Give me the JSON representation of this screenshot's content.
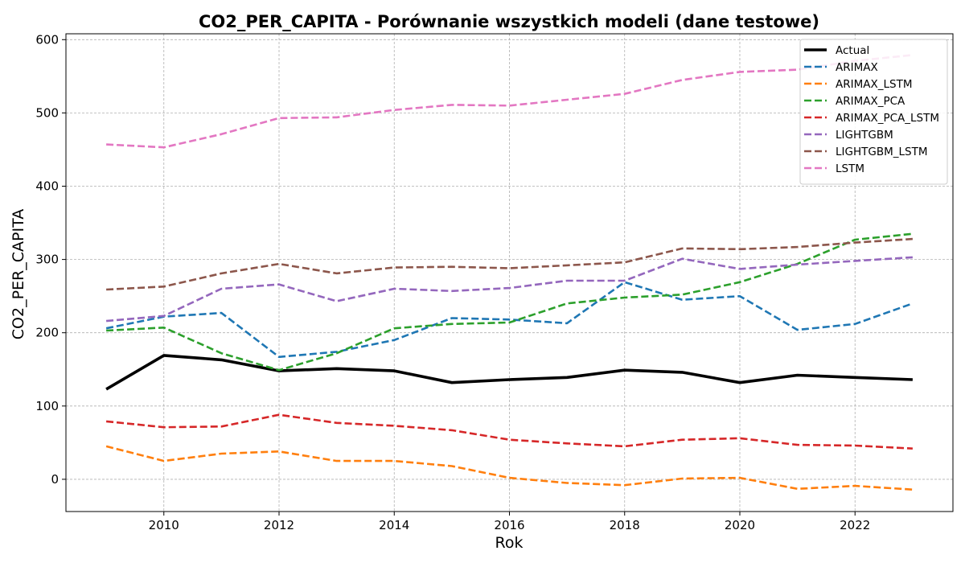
{
  "chart_data": {
    "type": "line",
    "title": "CO2_PER_CAPITA - Porównanie wszystkich modeli (dane testowe)",
    "xlabel": "Rok",
    "ylabel": "CO2_PER_CAPITA",
    "xlim": [
      2008.3,
      2023.7
    ],
    "ylim": [
      -44,
      608
    ],
    "xticks": [
      2010,
      2012,
      2014,
      2016,
      2018,
      2020,
      2022
    ],
    "yticks": [
      0,
      100,
      200,
      300,
      400,
      500,
      600
    ],
    "grid": true,
    "legend_position": "top-right",
    "x": [
      2009,
      2010,
      2011,
      2012,
      2013,
      2014,
      2015,
      2016,
      2017,
      2018,
      2019,
      2020,
      2021,
      2022,
      2023
    ],
    "series": [
      {
        "name": "Actual",
        "color": "#000000",
        "dashed": false,
        "values": [
          123,
          169,
          163,
          148,
          151,
          148,
          132,
          136,
          139,
          149,
          146,
          132,
          142,
          139,
          136
        ]
      },
      {
        "name": "ARIMAX",
        "color": "#1f77b4",
        "dashed": true,
        "values": [
          206,
          222,
          227,
          167,
          174,
          190,
          220,
          218,
          213,
          269,
          245,
          250,
          204,
          212,
          240
        ]
      },
      {
        "name": "ARIMAX_LSTM",
        "color": "#ff7f0e",
        "dashed": true,
        "values": [
          45,
          25,
          35,
          38,
          25,
          25,
          18,
          2,
          -5,
          -8,
          1,
          2,
          -13,
          -9,
          -14
        ]
      },
      {
        "name": "ARIMAX_PCA",
        "color": "#2ca02c",
        "dashed": true,
        "values": [
          203,
          207,
          172,
          149,
          172,
          206,
          212,
          214,
          240,
          248,
          252,
          269,
          294,
          327,
          335
        ]
      },
      {
        "name": "ARIMAX_PCA_LSTM",
        "color": "#d62728",
        "dashed": true,
        "values": [
          79,
          71,
          72,
          88,
          77,
          73,
          67,
          54,
          49,
          45,
          54,
          56,
          47,
          46,
          42
        ]
      },
      {
        "name": "LIGHTGBM",
        "color": "#9467bd",
        "dashed": true,
        "values": [
          216,
          223,
          260,
          266,
          243,
          260,
          257,
          261,
          271,
          271,
          301,
          287,
          293,
          298,
          303
        ]
      },
      {
        "name": "LIGHTGBM_LSTM",
        "color": "#8c564b",
        "dashed": true,
        "values": [
          259,
          263,
          281,
          294,
          281,
          289,
          290,
          288,
          292,
          296,
          315,
          314,
          317,
          323,
          328
        ]
      },
      {
        "name": "LSTM",
        "color": "#e377c2",
        "dashed": true,
        "values": [
          457,
          453,
          471,
          493,
          494,
          504,
          511,
          510,
          518,
          526,
          545,
          556,
          559,
          571,
          579
        ]
      }
    ]
  }
}
